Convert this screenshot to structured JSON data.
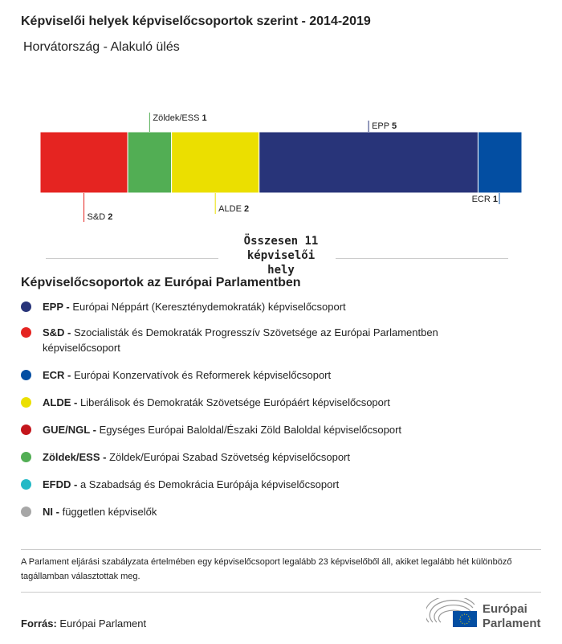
{
  "title": "Képviselői helyek képviselőcsoportok szerint - 2014-2019",
  "subtitle": "Horvátország - Alakuló ülés",
  "chart_data": {
    "type": "bar",
    "orientation": "horizontal-stacked",
    "categories": [
      "S&D",
      "Zöldek/ESS",
      "ALDE",
      "EPP",
      "ECR"
    ],
    "values": [
      2,
      1,
      2,
      5,
      1
    ],
    "colors": [
      "#e52421",
      "#52ae54",
      "#ebdf00",
      "#283479",
      "#034ea2"
    ],
    "label_side": [
      "bottom",
      "top",
      "bottom",
      "top",
      "bottom"
    ],
    "total_label": "Összesen 11 képviselői hely"
  },
  "legend": {
    "title": "Képviselőcsoportok az Európai Parlamentben",
    "items": [
      {
        "abbr": "EPP -",
        "text": "Európai Néppárt (Kereszténydemokraták) képviselőcsoport",
        "color": "#283479"
      },
      {
        "abbr": "S&D -",
        "text": "Szocialisták és Demokraták Progresszív Szövetsége az Európai Parlamentben képviselőcsoport",
        "color": "#e52421"
      },
      {
        "abbr": "ECR -",
        "text": "Európai Konzervatívok és Reformerek képviselőcsoport",
        "color": "#034ea2"
      },
      {
        "abbr": "ALDE -",
        "text": "Liberálisok és Demokraták Szövetsége Európáért képviselőcsoport",
        "color": "#ebdf00"
      },
      {
        "abbr": "GUE/NGL -",
        "text": "Egységes Európai Baloldal/Északi Zöld Baloldal képviselőcsoport",
        "color": "#c4161c"
      },
      {
        "abbr": "Zöldek/ESS -",
        "text": "Zöldek/Európai Szabad Szövetség képviselőcsoport",
        "color": "#52ae54"
      },
      {
        "abbr": "EFDD -",
        "text": "a Szabadság és Demokrácia Európája képviselőcsoport",
        "color": "#24b9c6"
      },
      {
        "abbr": "NI -",
        "text": "független képviselők",
        "color": "#a7a7a7"
      }
    ]
  },
  "note": "A Parlament eljárási szabályzata értelmében egy képviselőcsoport legalább 23 képviselőből áll, akiket legalább hét különböző tagállamban választottak meg.",
  "source": {
    "label": "Forrás:",
    "value": "Európai Parlament"
  },
  "logo": {
    "text1": "Európai",
    "text2": "Parlament"
  }
}
